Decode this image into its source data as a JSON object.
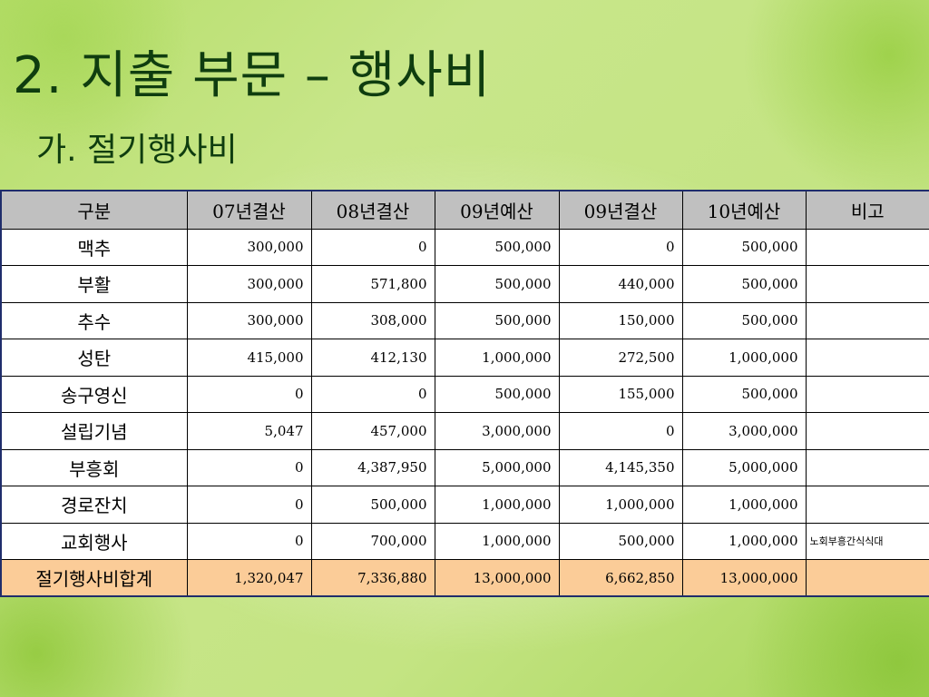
{
  "title": "2. 지출 부문 – 행사비",
  "subtitle": "가. 절기행사비",
  "table": {
    "headers": [
      "구분",
      "07년결산",
      "08년결산",
      "09년예산",
      "09년결산",
      "10년예산",
      "비고"
    ],
    "rows": [
      [
        "맥추",
        "300,000",
        "0",
        "500,000",
        "0",
        "500,000",
        ""
      ],
      [
        "부활",
        "300,000",
        "571,800",
        "500,000",
        "440,000",
        "500,000",
        ""
      ],
      [
        "추수",
        "300,000",
        "308,000",
        "500,000",
        "150,000",
        "500,000",
        ""
      ],
      [
        "성탄",
        "415,000",
        "412,130",
        "1,000,000",
        "272,500",
        "1,000,000",
        ""
      ],
      [
        "송구영신",
        "0",
        "0",
        "500,000",
        "155,000",
        "500,000",
        ""
      ],
      [
        "설립기념",
        "5,047",
        "457,000",
        "3,000,000",
        "0",
        "3,000,000",
        ""
      ],
      [
        "부흥회",
        "0",
        "4,387,950",
        "5,000,000",
        "4,145,350",
        "5,000,000",
        ""
      ],
      [
        "경로잔치",
        "0",
        "500,000",
        "1,000,000",
        "1,000,000",
        "1,000,000",
        ""
      ],
      [
        "교회행사",
        "0",
        "700,000",
        "1,000,000",
        "500,000",
        "1,000,000",
        "노회부흥간식식대"
      ]
    ],
    "total": [
      "절기행사비합계",
      "1,320,047",
      "7,336,880",
      "13,000,000",
      "6,662,850",
      "13,000,000",
      ""
    ]
  }
}
